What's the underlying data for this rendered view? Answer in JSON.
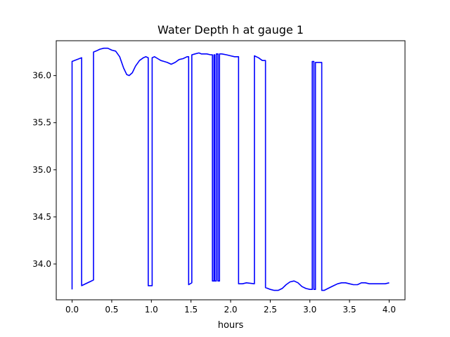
{
  "chart_data": {
    "type": "line",
    "title": "Water Depth h at gauge 1",
    "xlabel": "hours",
    "ylabel": "",
    "xlim": [
      -0.2,
      4.2
    ],
    "ylim": [
      33.62,
      36.37
    ],
    "xticks": [
      0.0,
      0.5,
      1.0,
      1.5,
      2.0,
      2.5,
      3.0,
      3.5,
      4.0
    ],
    "xtick_labels": [
      "0.0",
      "0.5",
      "1.0",
      "1.5",
      "2.0",
      "2.5",
      "3.0",
      "3.5",
      "4.0"
    ],
    "yticks": [
      34.0,
      34.5,
      35.0,
      35.5,
      36.0
    ],
    "ytick_labels": [
      "34.0",
      "34.5",
      "35.0",
      "35.5",
      "36.0"
    ],
    "grid": false,
    "series": [
      {
        "color": "#0000ff",
        "x": [
          0.0,
          0.0,
          0.12,
          0.12,
          0.27,
          0.27,
          0.3,
          0.35,
          0.4,
          0.45,
          0.5,
          0.55,
          0.6,
          0.65,
          0.69,
          0.72,
          0.76,
          0.8,
          0.85,
          0.9,
          0.93,
          0.96,
          0.96,
          1.01,
          1.01,
          1.04,
          1.08,
          1.12,
          1.16,
          1.2,
          1.25,
          1.3,
          1.35,
          1.4,
          1.45,
          1.47,
          1.47,
          1.51,
          1.51,
          1.55,
          1.6,
          1.63,
          1.66,
          1.7,
          1.75,
          1.77,
          1.77,
          1.79,
          1.79,
          1.8,
          1.8,
          1.82,
          1.82,
          1.84,
          1.84,
          1.86,
          1.86,
          1.89,
          1.95,
          2.0,
          2.05,
          2.1,
          2.1,
          2.15,
          2.2,
          2.2,
          2.3,
          2.3,
          2.35,
          2.4,
          2.44,
          2.44,
          2.5,
          2.55,
          2.6,
          2.65,
          2.7,
          2.75,
          2.8,
          2.85,
          2.9,
          2.95,
          3.0,
          3.03,
          3.03,
          3.05,
          3.05,
          3.07,
          3.07,
          3.15,
          3.15,
          3.18,
          3.18,
          3.25,
          3.3,
          3.35,
          3.4,
          3.45,
          3.5,
          3.55,
          3.6,
          3.65,
          3.7,
          3.75,
          3.8,
          3.85,
          3.9,
          3.95,
          4.0
        ],
        "y": [
          33.73,
          36.15,
          36.19,
          33.77,
          33.83,
          36.25,
          36.26,
          36.28,
          36.29,
          36.29,
          36.27,
          36.26,
          36.2,
          36.08,
          36.01,
          36.0,
          36.03,
          36.1,
          36.16,
          36.19,
          36.2,
          36.19,
          33.77,
          33.77,
          36.19,
          36.2,
          36.18,
          36.16,
          36.15,
          36.14,
          36.12,
          36.14,
          36.17,
          36.18,
          36.2,
          36.2,
          33.78,
          33.8,
          36.22,
          36.23,
          36.24,
          36.23,
          36.23,
          36.23,
          36.22,
          36.22,
          33.82,
          33.82,
          36.22,
          36.22,
          33.82,
          33.82,
          36.23,
          36.23,
          33.82,
          33.82,
          36.23,
          36.23,
          36.22,
          36.21,
          36.2,
          36.2,
          33.79,
          33.79,
          33.8,
          33.8,
          33.79,
          36.21,
          36.19,
          36.16,
          36.16,
          33.75,
          33.73,
          33.72,
          33.72,
          33.74,
          33.78,
          33.81,
          33.82,
          33.8,
          33.76,
          33.74,
          33.73,
          33.73,
          36.15,
          36.15,
          33.73,
          33.73,
          36.14,
          36.14,
          33.72,
          33.72,
          33.72,
          33.75,
          33.77,
          33.79,
          33.8,
          33.8,
          33.79,
          33.78,
          33.78,
          33.8,
          33.8,
          33.79,
          33.79,
          33.79,
          33.79,
          33.79,
          33.8
        ]
      }
    ]
  }
}
